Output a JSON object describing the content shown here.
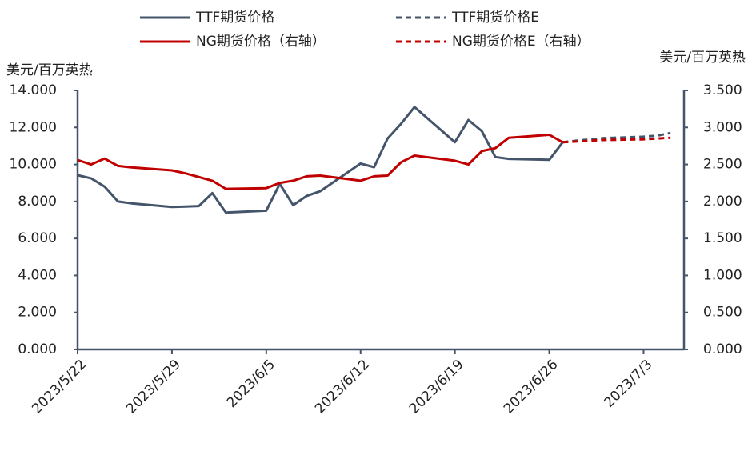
{
  "chart_data": {
    "type": "line",
    "y_label": "美元/百万英热",
    "y2_label": "美元/百万英热",
    "xlim": [
      "2023/5/22",
      "2023/7/6"
    ],
    "xticks": [
      "2023/5/22",
      "2023/5/29",
      "2023/6/5",
      "2023/6/12",
      "2023/6/19",
      "2023/6/26",
      "2023/7/3"
    ],
    "ylim": [
      0,
      14
    ],
    "yticks": [
      {
        "value": 0,
        "label": "0.000"
      },
      {
        "value": 2,
        "label": "2.000"
      },
      {
        "value": 4,
        "label": "4.000"
      },
      {
        "value": 6,
        "label": "6.000"
      },
      {
        "value": 8,
        "label": "8.000"
      },
      {
        "value": 10,
        "label": "10.000"
      },
      {
        "value": 12,
        "label": "12.000"
      },
      {
        "value": 14,
        "label": "14.000"
      }
    ],
    "y2lim": [
      0,
      3.5
    ],
    "y2ticks": [
      {
        "value": 0,
        "label": "0.000"
      },
      {
        "value": 0.5,
        "label": "0.500"
      },
      {
        "value": 1,
        "label": "1.000"
      },
      {
        "value": 1.5,
        "label": "1.500"
      },
      {
        "value": 2,
        "label": "2.000"
      },
      {
        "value": 2.5,
        "label": "2.500"
      },
      {
        "value": 3,
        "label": "3.000"
      },
      {
        "value": 3.5,
        "label": "3.500"
      }
    ],
    "series": [
      {
        "name": "TTF期货价格",
        "color": "#44546a",
        "dashed": false,
        "x": [
          "2023/5/22",
          "2023/5/23",
          "2023/5/24",
          "2023/5/25",
          "2023/5/26",
          "2023/5/29",
          "2023/5/30",
          "2023/5/31",
          "2023/6/1",
          "2023/6/2",
          "2023/6/5",
          "2023/6/6",
          "2023/6/7",
          "2023/6/8",
          "2023/6/9",
          "2023/6/12",
          "2023/6/13",
          "2023/6/14",
          "2023/6/15",
          "2023/6/16",
          "2023/6/19",
          "2023/6/20",
          "2023/6/21",
          "2023/6/22",
          "2023/6/23",
          "2023/6/26",
          "2023/6/27"
        ],
        "values": [
          9.42,
          9.25,
          8.8,
          8.0,
          7.9,
          7.7,
          7.72,
          7.75,
          8.45,
          7.4,
          7.5,
          8.95,
          7.8,
          8.3,
          8.55,
          10.05,
          9.85,
          11.4,
          12.2,
          13.1,
          11.2,
          12.4,
          11.8,
          10.4,
          10.3,
          10.25,
          11.2
        ]
      },
      {
        "name": "TTF期货价格E",
        "color": "#44546a",
        "dashed": true,
        "x": [
          "2023/6/27",
          "2023/6/28",
          "2023/6/29",
          "2023/6/30",
          "2023/7/3",
          "2023/7/4",
          "2023/7/5"
        ],
        "values": [
          11.2,
          11.28,
          11.35,
          11.42,
          11.5,
          11.55,
          11.7
        ]
      },
      {
        "name": "NG期货价格（右轴）",
        "color": "#c00000",
        "dashed": false,
        "axis": "y2",
        "x": [
          "2023/5/22",
          "2023/5/23",
          "2023/5/24",
          "2023/5/25",
          "2023/5/26",
          "2023/5/29",
          "2023/5/30",
          "2023/5/31",
          "2023/6/1",
          "2023/6/2",
          "2023/6/5",
          "2023/6/6",
          "2023/6/7",
          "2023/6/8",
          "2023/6/9",
          "2023/6/12",
          "2023/6/13",
          "2023/6/14",
          "2023/6/15",
          "2023/6/16",
          "2023/6/19",
          "2023/6/20",
          "2023/6/21",
          "2023/6/22",
          "2023/6/23",
          "2023/6/26",
          "2023/6/27"
        ],
        "values": [
          2.56,
          2.5,
          2.58,
          2.48,
          2.46,
          2.42,
          2.38,
          2.33,
          2.28,
          2.17,
          2.18,
          2.25,
          2.28,
          2.34,
          2.35,
          2.28,
          2.34,
          2.35,
          2.53,
          2.62,
          2.55,
          2.5,
          2.68,
          2.72,
          2.86,
          2.9,
          2.8
        ]
      },
      {
        "name": "NG期货价格E（右轴）",
        "color": "#c00000",
        "dashed": true,
        "axis": "y2",
        "x": [
          "2023/6/27",
          "2023/6/28",
          "2023/6/29",
          "2023/6/30",
          "2023/7/3",
          "2023/7/4",
          "2023/7/5"
        ],
        "values": [
          2.8,
          2.81,
          2.82,
          2.83,
          2.84,
          2.85,
          2.86
        ]
      }
    ]
  }
}
